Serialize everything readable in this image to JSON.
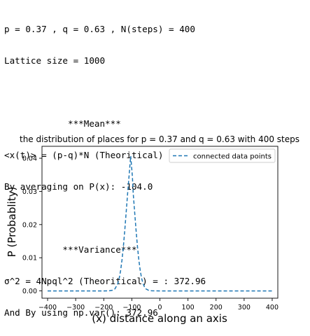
{
  "output": {
    "params_line": "p = 0.37 , q = 0.63 , N(steps) = 400",
    "lattice_line": "Lattice size = 1000",
    "mean_header": "            ***Mean***",
    "mean_theory": "<x(t)> = (p-q)*N (Theoritical)  =   -104.0",
    "mean_avg": "By averaging on P(x): -104.0",
    "var_header": "           ***Variance***",
    "var_theory": "σ^2 = 4Npql^2 (Theoritical) = : 372.96",
    "var_np": "And By using np.var(): 372.96"
  },
  "chart_data": {
    "type": "line",
    "title": "the distribution of places for p = 0.37 and q = 0.63 with 400 steps",
    "xlabel": "(x) distance along an axis",
    "ylabel": "P  (Probablity)",
    "xlim": [
      -420,
      420
    ],
    "ylim": [
      -0.0022,
      0.0436
    ],
    "xticks": [
      -400,
      -300,
      -200,
      -100,
      0,
      100,
      200,
      300,
      400
    ],
    "yticks": [
      0.0,
      0.01,
      0.02,
      0.03,
      0.04
    ],
    "xtick_labels": [
      "−400",
      "−300",
      "−200",
      "−100",
      "0",
      "100",
      "200",
      "300",
      "400"
    ],
    "ytick_labels": [
      "0.00",
      "0.01",
      "0.02",
      "0.03",
      "0.04"
    ],
    "legend_position": "top-right",
    "grid": false,
    "series": [
      {
        "name": "connected data points",
        "color": "#1f77b4",
        "style": "dashed",
        "x": [
          -400,
          -300,
          -200,
          -180,
          -170,
          -160,
          -150,
          -145,
          -140,
          -135,
          -130,
          -125,
          -120,
          -115,
          -110,
          -106,
          -104,
          -102,
          -98,
          -95,
          -90,
          -85,
          -80,
          -75,
          -70,
          -65,
          -60,
          -55,
          -50,
          -40,
          -30,
          0,
          100,
          200,
          300,
          400
        ],
        "y": [
          0.0,
          0.0,
          0.0,
          2e-05,
          0.00011,
          0.00039,
          0.00137,
          0.00235,
          0.00382,
          0.00583,
          0.00841,
          0.0115,
          0.0149,
          0.01835,
          0.02156,
          0.02416,
          0.0254,
          0.02416,
          0.02156,
          0.01835,
          0.0149,
          0.0115,
          0.00841,
          0.00583,
          0.00382,
          0.00235,
          0.00137,
          0.00075,
          0.00039,
          0.00011,
          2e-05,
          0.0,
          0.0,
          0.0,
          0.0,
          0.0
        ]
      }
    ]
  }
}
